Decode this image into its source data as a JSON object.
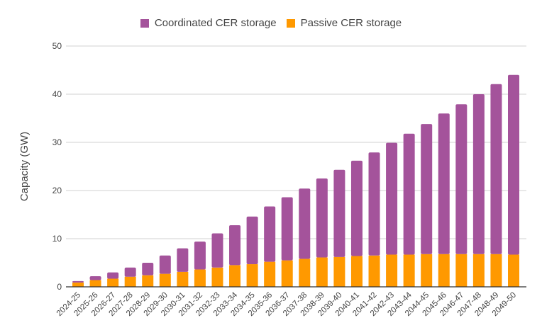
{
  "chart_data": {
    "type": "bar",
    "stacked": true,
    "title": "",
    "xlabel": "",
    "ylabel": "Capacity (GW)",
    "ylim": [
      0,
      50
    ],
    "yticks": [
      0,
      10,
      20,
      30,
      40,
      50
    ],
    "grid": true,
    "legend_position": "top",
    "categories": [
      "2024-25",
      "2025-26",
      "2026-27",
      "2027-28",
      "2028-29",
      "2029-30",
      "2030-31",
      "2031-32",
      "2032-33",
      "2033-34",
      "2034-35",
      "2035-36",
      "2036-37",
      "2037-38",
      "2038-39",
      "2039-40",
      "2040-41",
      "2041-42",
      "2042-43",
      "2043-44",
      "2044-45",
      "2045-46",
      "2046-47",
      "2047-48",
      "2048-49",
      "2049-50"
    ],
    "series": [
      {
        "name": "Passive CER storage",
        "color": "#ff9900",
        "values": [
          0.9,
          1.4,
          1.7,
          2.1,
          2.4,
          2.7,
          3.1,
          3.6,
          4.0,
          4.5,
          4.7,
          5.2,
          5.5,
          5.8,
          6.1,
          6.2,
          6.4,
          6.5,
          6.7,
          6.7,
          6.8,
          6.8,
          6.8,
          6.8,
          6.8,
          6.7
        ]
      },
      {
        "name": "Coordinated CER storage",
        "color": "#a4539b",
        "values": [
          0.3,
          0.8,
          1.3,
          1.9,
          2.6,
          3.8,
          4.9,
          5.8,
          7.1,
          8.3,
          9.9,
          11.5,
          13.1,
          14.6,
          16.4,
          18.1,
          19.8,
          21.4,
          23.2,
          25.1,
          27.0,
          29.2,
          31.1,
          33.2,
          35.3,
          37.3
        ]
      }
    ]
  },
  "legend": [
    {
      "label": "Coordinated CER storage",
      "color": "#a4539b"
    },
    {
      "label": "Passive CER storage",
      "color": "#ff9900"
    }
  ]
}
